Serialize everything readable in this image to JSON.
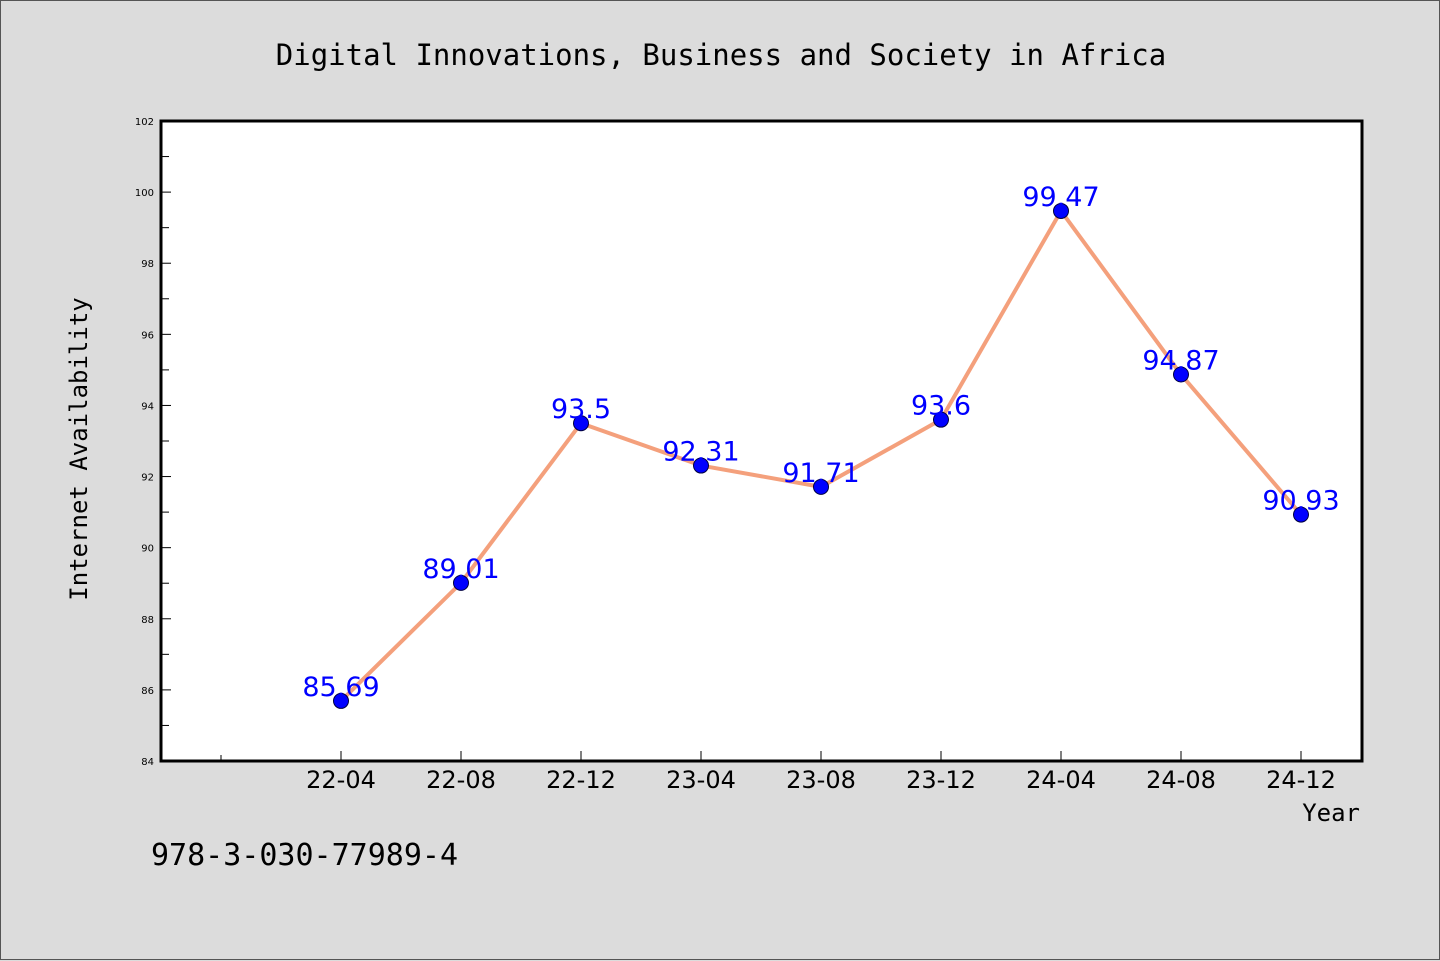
{
  "chart_data": {
    "type": "line",
    "title": "Digital Innovations, Business and Society in Africa",
    "xlabel": "Year",
    "ylabel": "Internet Availability",
    "categories": [
      "22-04",
      "22-08",
      "22-12",
      "23-04",
      "23-08",
      "23-12",
      "24-04",
      "24-08",
      "24-12"
    ],
    "series": [
      {
        "values": [
          85.69,
          89.01,
          93.5,
          92.31,
          91.71,
          93.6,
          99.47,
          94.87,
          90.93
        ]
      }
    ],
    "value_labels": [
      "85.69",
      "89.01",
      "93.5",
      "92.31",
      "91.71",
      "93.6",
      "99.47",
      "94.87",
      "90.93"
    ],
    "ylim": [
      84,
      102
    ],
    "yticks": [
      84,
      86,
      88,
      90,
      92,
      94,
      96,
      98,
      100,
      102
    ],
    "ytick_labels": [
      "84",
      "86",
      "88",
      "90",
      "92",
      "94",
      "96",
      "98",
      "100",
      "102"
    ],
    "grid": false,
    "line_color": "#f4a07c",
    "marker_color": "#0000ff",
    "label_color": "#0000ff"
  },
  "footnote": "978-3-030-77989-4"
}
